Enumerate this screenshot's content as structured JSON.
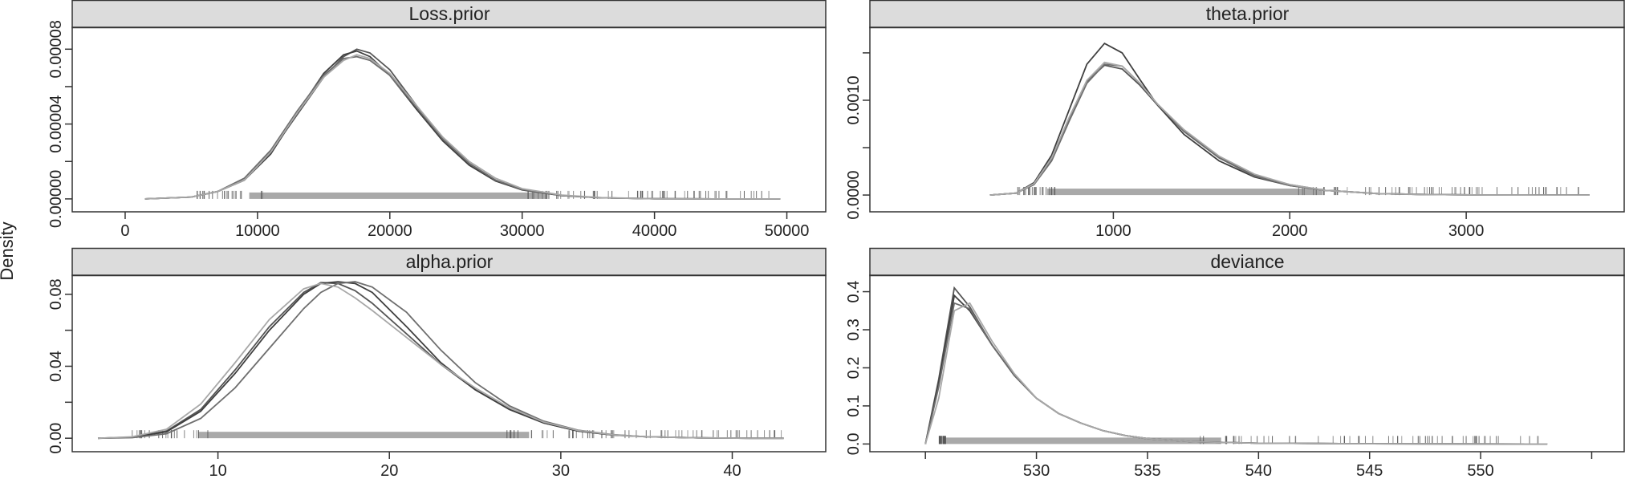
{
  "ylabel": "Density",
  "colors": {
    "strip_bg": "#dcdcdc",
    "frame": "#333333",
    "rug_band": "#a9a9a9",
    "rug_ticks": "#555555",
    "chain_lines": [
      "#555555",
      "#3f3f3f",
      "#6e6e6e",
      "#a8a8a8",
      "#7a7a7a"
    ]
  },
  "chart_data": [
    {
      "type": "line",
      "title": "Loss.prior",
      "xlabel": "",
      "ylabel": "Density",
      "xlim": [
        -4000,
        53000
      ],
      "ylim": [
        -6.9e-06,
        9.17e-05
      ],
      "xticks": [
        0,
        10000,
        20000,
        30000,
        40000,
        50000
      ],
      "xtick_labels": [
        "0",
        "10000",
        "20000",
        "30000",
        "40000",
        "50000"
      ],
      "yticks": [
        0.0,
        2e-05,
        4e-05,
        6e-05,
        8e-05
      ],
      "ytick_labels": [
        "0.00000",
        "",
        "0.00004",
        "",
        "0.00008"
      ],
      "series": [
        {
          "x": [
            1500,
            5000,
            7000,
            9000,
            11000,
            13000,
            15000,
            16500,
            17500,
            18500,
            20000,
            22000,
            24000,
            26000,
            28000,
            30000,
            33000,
            36000,
            40000,
            45000,
            49500
          ],
          "y": [
            0,
            1e-06,
            4e-06,
            1e-05,
            2.5e-05,
            4.5e-05,
            6.5e-05,
            7.6e-05,
            8e-05,
            7.8e-05,
            6.9e-05,
            5e-05,
            3.2e-05,
            1.9e-05,
            1e-05,
            5e-06,
            1.8e-06,
            6e-07,
            1e-07,
            0,
            0
          ]
        },
        {
          "x": [
            1500,
            5000,
            7000,
            9000,
            11000,
            13000,
            15000,
            16500,
            17500,
            18500,
            20000,
            22000,
            24000,
            26000,
            28000,
            30000,
            33000,
            36000,
            40000,
            45000,
            49500
          ],
          "y": [
            0,
            1e-06,
            4e-06,
            1e-05,
            2.4e-05,
            4.6e-05,
            6.7e-05,
            7.7e-05,
            7.9e-05,
            7.6e-05,
            6.6e-05,
            4.8e-05,
            3.1e-05,
            1.8e-05,
            9.5e-06,
            4.8e-06,
            1.7e-06,
            6e-07,
            1e-07,
            0,
            0
          ]
        },
        {
          "x": [
            1500,
            5000,
            7000,
            9000,
            11000,
            13000,
            15000,
            16500,
            17500,
            18500,
            20000,
            22000,
            24000,
            26000,
            28000,
            30000,
            33000,
            36000,
            40000,
            45000,
            49500
          ],
          "y": [
            0,
            1e-06,
            4e-06,
            1.1e-05,
            2.6e-05,
            4.7e-05,
            6.6e-05,
            7.5e-05,
            7.6e-05,
            7.4e-05,
            6.6e-05,
            4.9e-05,
            3.2e-05,
            1.9e-05,
            1e-05,
            5e-06,
            1.8e-06,
            6e-07,
            1e-07,
            0,
            0
          ]
        },
        {
          "x": [
            1500,
            5000,
            7000,
            9000,
            11000,
            13000,
            15000,
            16500,
            17500,
            18500,
            20000,
            22000,
            24000,
            26000,
            28000,
            30000,
            33000,
            36000,
            40000,
            45000,
            49500
          ],
          "y": [
            0,
            1e-06,
            4e-06,
            1e-05,
            2.5e-05,
            4.6e-05,
            6.5e-05,
            7.4e-05,
            7.7e-05,
            7.5e-05,
            6.7e-05,
            5e-05,
            3.3e-05,
            2e-05,
            1.1e-05,
            5.5e-06,
            2e-06,
            7e-07,
            1e-07,
            0,
            0
          ]
        }
      ]
    },
    {
      "type": "line",
      "title": "theta.prior",
      "xlabel": "",
      "ylabel": "",
      "xlim": [
        -380,
        3900
      ],
      "ylim": [
        -0.000177,
        0.00177
      ],
      "xticks": [
        1000,
        2000,
        3000
      ],
      "xtick_labels": [
        "1000",
        "2000",
        "3000"
      ],
      "yticks": [
        0.0,
        0.0005,
        0.001,
        0.0015
      ],
      "ytick_labels": [
        "0.0000",
        "",
        "0.0010",
        ""
      ],
      "series": [
        {
          "x": [
            300,
            450,
            550,
            650,
            750,
            850,
            950,
            1050,
            1150,
            1250,
            1400,
            1600,
            1800,
            2000,
            2200,
            2500,
            2800,
            3100,
            3400,
            3700
          ],
          "y": [
            0,
            2e-05,
            0.00012,
            0.00038,
            0.0008,
            0.0012,
            0.00137,
            0.00133,
            0.00116,
            0.00095,
            0.00068,
            0.0004,
            0.00021,
            0.00011,
            5e-05,
            1.5e-05,
            5e-06,
            1e-06,
            0,
            0
          ]
        },
        {
          "x": [
            300,
            450,
            550,
            650,
            750,
            850,
            950,
            1050,
            1150,
            1250,
            1400,
            1600,
            1800,
            2000,
            2200,
            2500,
            2800,
            3100,
            3400,
            3700
          ],
          "y": [
            0,
            2e-05,
            0.00013,
            0.00042,
            0.0009,
            0.00138,
            0.0016,
            0.0015,
            0.00122,
            0.00095,
            0.00064,
            0.00036,
            0.00019,
            0.0001,
            5e-05,
            1.5e-05,
            5e-06,
            1e-06,
            0,
            0
          ]
        },
        {
          "x": [
            300,
            450,
            550,
            650,
            750,
            850,
            950,
            1050,
            1150,
            1250,
            1400,
            1600,
            1800,
            2000,
            2200,
            2500,
            2800,
            3100,
            3400,
            3700
          ],
          "y": [
            0,
            2e-05,
            0.00011,
            0.00036,
            0.00078,
            0.00118,
            0.00138,
            0.00136,
            0.00118,
            0.00096,
            0.00067,
            0.00039,
            0.0002,
            0.0001,
            5e-05,
            1.5e-05,
            5e-06,
            1e-06,
            0,
            0
          ]
        },
        {
          "x": [
            300,
            450,
            550,
            650,
            750,
            850,
            950,
            1050,
            1150,
            1250,
            1400,
            1600,
            1800,
            2000,
            2200,
            2500,
            2800,
            3100,
            3400,
            3700
          ],
          "y": [
            0,
            2e-05,
            0.00012,
            0.00039,
            0.00082,
            0.00121,
            0.0014,
            0.00136,
            0.00118,
            0.00096,
            0.00069,
            0.00041,
            0.00022,
            0.00011,
            5e-05,
            1.5e-05,
            5e-06,
            1e-06,
            0,
            0
          ]
        }
      ]
    },
    {
      "type": "line",
      "title": "alpha.prior",
      "xlabel": "",
      "ylabel": "",
      "xlim": [
        1.5,
        45.5
      ],
      "ylim": [
        -0.0075,
        0.0906
      ],
      "xticks": [
        10,
        20,
        30,
        40
      ],
      "xtick_labels": [
        "10",
        "20",
        "30",
        "40"
      ],
      "yticks": [
        0.0,
        0.02,
        0.04,
        0.06,
        0.08
      ],
      "ytick_labels": [
        "0.00",
        "",
        "0.04",
        "",
        "0.08"
      ],
      "series": [
        {
          "x": [
            3,
            5,
            7,
            9,
            11,
            13,
            15,
            16,
            17,
            18,
            19,
            21,
            23,
            25,
            27,
            29,
            31,
            33,
            35,
            38,
            41,
            43
          ],
          "y": [
            0,
            0.0006,
            0.004,
            0.016,
            0.038,
            0.062,
            0.081,
            0.0865,
            0.086,
            0.082,
            0.075,
            0.058,
            0.041,
            0.027,
            0.016,
            0.0085,
            0.004,
            0.0018,
            0.0008,
            0.0002,
            0,
            0
          ]
        },
        {
          "x": [
            3,
            5,
            7,
            9,
            11,
            13,
            15,
            16,
            17,
            18,
            19,
            21,
            23,
            25,
            27,
            29,
            31,
            33,
            35,
            38,
            41,
            43
          ],
          "y": [
            0,
            0.0005,
            0.0035,
            0.015,
            0.036,
            0.06,
            0.08,
            0.086,
            0.087,
            0.086,
            0.081,
            0.062,
            0.042,
            0.027,
            0.016,
            0.0085,
            0.004,
            0.0018,
            0.0008,
            0.0002,
            0,
            0
          ]
        },
        {
          "x": [
            3,
            5,
            7,
            9,
            11,
            13,
            15,
            16,
            17,
            18,
            19,
            21,
            23,
            25,
            27,
            29,
            31,
            33,
            35,
            38,
            41,
            43
          ],
          "y": [
            0,
            0.0003,
            0.0025,
            0.011,
            0.028,
            0.05,
            0.072,
            0.081,
            0.086,
            0.087,
            0.084,
            0.07,
            0.049,
            0.031,
            0.018,
            0.0095,
            0.0045,
            0.002,
            0.0008,
            0.0002,
            0,
            0
          ]
        },
        {
          "x": [
            3,
            5,
            7,
            9,
            11,
            13,
            15,
            16,
            17,
            18,
            19,
            21,
            23,
            25,
            27,
            29,
            31,
            33,
            35,
            38,
            41,
            43
          ],
          "y": [
            0,
            0.0008,
            0.005,
            0.019,
            0.042,
            0.066,
            0.083,
            0.086,
            0.084,
            0.078,
            0.071,
            0.056,
            0.041,
            0.028,
            0.017,
            0.009,
            0.0043,
            0.0019,
            0.0008,
            0.0002,
            0,
            0
          ]
        }
      ]
    },
    {
      "type": "line",
      "title": "deviance",
      "xlabel": "",
      "ylabel": "",
      "xlim": [
        522.5,
        556.5
      ],
      "ylim": [
        -0.0203,
        0.4433
      ],
      "xticks": [
        525,
        530,
        535,
        540,
        545,
        550,
        555
      ],
      "xtick_labels": [
        "",
        "530",
        "535",
        "540",
        "545",
        "550",
        ""
      ],
      "yticks": [
        0.0,
        0.1,
        0.2,
        0.3,
        0.4
      ],
      "ytick_labels": [
        "0.0",
        "0.1",
        "0.2",
        "0.3",
        "0.4"
      ],
      "series": [
        {
          "x": [
            525,
            525.6,
            526.3,
            527,
            528,
            529,
            530,
            531,
            532,
            533,
            534,
            535,
            537,
            540,
            545,
            550,
            553
          ],
          "y": [
            0,
            0.17,
            0.41,
            0.36,
            0.26,
            0.18,
            0.12,
            0.08,
            0.055,
            0.035,
            0.022,
            0.014,
            0.006,
            0.002,
            0.0005,
            0.0001,
            0
          ]
        },
        {
          "x": [
            525,
            525.6,
            526.3,
            527,
            528,
            529,
            530,
            531,
            532,
            533,
            534,
            535,
            537,
            540,
            545,
            550,
            553
          ],
          "y": [
            0,
            0.16,
            0.39,
            0.35,
            0.26,
            0.18,
            0.12,
            0.08,
            0.055,
            0.035,
            0.022,
            0.014,
            0.006,
            0.002,
            0.0005,
            0.0001,
            0
          ]
        },
        {
          "x": [
            525,
            525.6,
            526.3,
            527,
            528,
            529,
            530,
            531,
            532,
            533,
            534,
            535,
            537,
            540,
            545,
            550,
            553
          ],
          "y": [
            0,
            0.15,
            0.37,
            0.355,
            0.26,
            0.18,
            0.12,
            0.08,
            0.055,
            0.035,
            0.022,
            0.014,
            0.006,
            0.002,
            0.0005,
            0.0001,
            0
          ]
        },
        {
          "x": [
            525,
            525.6,
            526.3,
            527,
            528,
            529,
            530,
            531,
            532,
            533,
            534,
            535,
            537,
            540,
            545,
            550,
            553
          ],
          "y": [
            0,
            0.12,
            0.35,
            0.37,
            0.27,
            0.185,
            0.12,
            0.08,
            0.055,
            0.035,
            0.022,
            0.014,
            0.006,
            0.002,
            0.0005,
            0.0001,
            0
          ]
        }
      ]
    }
  ]
}
